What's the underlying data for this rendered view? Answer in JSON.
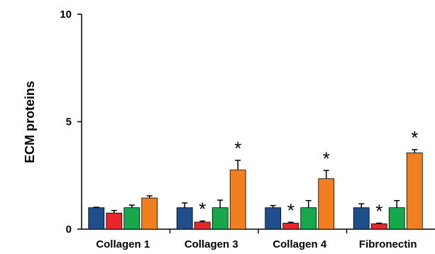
{
  "chart_data": {
    "type": "bar",
    "ylabel": "ECM proteins",
    "xlabel": "",
    "ylim": [
      0,
      10
    ],
    "yticks": [
      "0",
      "5",
      "10"
    ],
    "categories": [
      "Collagen 1",
      "Collagen 3",
      "Collagen 4",
      "Fibronectin"
    ],
    "series": [
      {
        "color": "#1f4e8c",
        "values": [
          1.0,
          1.0,
          1.0,
          1.0
        ],
        "errors": [
          0.02,
          0.22,
          0.1,
          0.18
        ]
      },
      {
        "color": "#e8262b",
        "values": [
          0.75,
          0.33,
          0.28,
          0.25
        ],
        "errors": [
          0.12,
          0.05,
          0.04,
          0.03
        ]
      },
      {
        "color": "#16a84a",
        "values": [
          1.0,
          1.0,
          1.0,
          1.0
        ],
        "errors": [
          0.12,
          0.35,
          0.33,
          0.33
        ]
      },
      {
        "color": "#f07f22",
        "values": [
          1.45,
          2.75,
          2.35,
          3.55
        ],
        "errors": [
          0.1,
          0.45,
          0.38,
          0.15
        ]
      }
    ],
    "significance": [
      {
        "category": 1,
        "series": 1,
        "label": "*"
      },
      {
        "category": 1,
        "series": 3,
        "label": "*"
      },
      {
        "category": 2,
        "series": 1,
        "label": "*"
      },
      {
        "category": 2,
        "series": 3,
        "label": "*"
      },
      {
        "category": 3,
        "series": 1,
        "label": "*"
      },
      {
        "category": 3,
        "series": 3,
        "label": "*"
      }
    ],
    "grid": false,
    "legend": "none"
  }
}
